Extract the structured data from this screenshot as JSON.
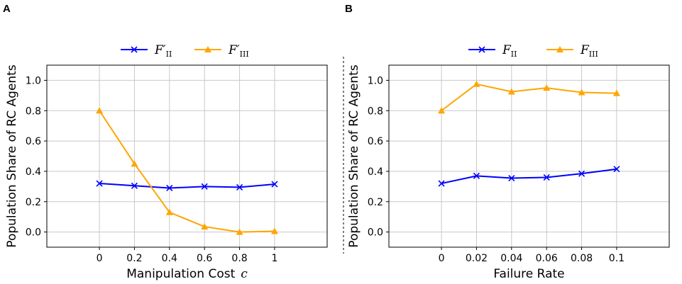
{
  "chart_data": [
    {
      "panel": "A",
      "type": "line",
      "x": [
        0,
        0.2,
        0.4,
        0.6,
        0.8,
        1
      ],
      "xticklabels": [
        "0",
        "0.2",
        "0.4",
        "0.6",
        "0.8",
        "1"
      ],
      "xlim": [
        -0.3,
        1.3
      ],
      "ylim": [
        -0.1,
        1.1
      ],
      "yticks": [
        "0.0",
        "0.2",
        "0.4",
        "0.6",
        "0.8",
        "1.0"
      ],
      "xlabel": "Manipulation Cost",
      "xlabel_symbol": "c",
      "ylabel": "Population Share of RC Agents",
      "grid": true,
      "legend_position": "top-center",
      "series": [
        {
          "name": "F'II",
          "label": "F′",
          "subscript": "II",
          "color": "#0000ff",
          "marker": "x",
          "values": [
            0.32,
            0.305,
            0.29,
            0.3,
            0.295,
            0.315
          ]
        },
        {
          "name": "F'III",
          "label": "F′",
          "subscript": "III",
          "color": "#ffa500",
          "marker": "triangle",
          "values": [
            0.8,
            0.45,
            0.13,
            0.035,
            0.0,
            0.005
          ]
        }
      ]
    },
    {
      "panel": "B",
      "type": "line",
      "x": [
        0,
        0.02,
        0.04,
        0.06,
        0.08,
        0.1
      ],
      "xticklabels": [
        "0",
        "0.02",
        "0.04",
        "0.06",
        "0.08",
        "0.1"
      ],
      "xlim": [
        -0.03,
        0.13
      ],
      "ylim": [
        -0.1,
        1.1
      ],
      "yticks": [
        "0.0",
        "0.2",
        "0.4",
        "0.6",
        "0.8",
        "1.0"
      ],
      "xlabel": "Failure Rate",
      "ylabel": "Population Share of RC Agents",
      "grid": true,
      "legend_position": "top-center",
      "series": [
        {
          "name": "FII",
          "label": "F",
          "subscript": "II",
          "color": "#0000ff",
          "marker": "x",
          "values": [
            0.32,
            0.37,
            0.355,
            0.36,
            0.385,
            0.415
          ]
        },
        {
          "name": "FIII",
          "label": "F",
          "subscript": "III",
          "color": "#ffa500",
          "marker": "triangle",
          "values": [
            0.8,
            0.975,
            0.925,
            0.95,
            0.92,
            0.915
          ]
        }
      ]
    }
  ]
}
